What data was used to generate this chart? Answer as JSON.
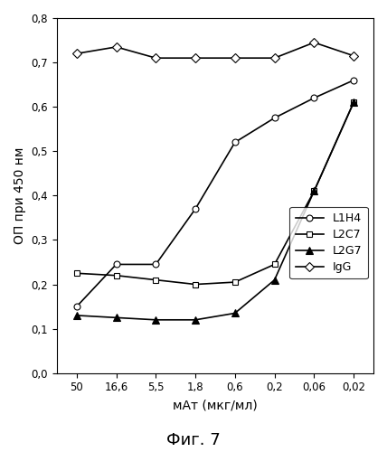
{
  "x_labels": [
    "50",
    "16,6",
    "5,5",
    "1,8",
    "0,6",
    "0,2",
    "0,06",
    "0,02"
  ],
  "series": {
    "L1H4": {
      "y": [
        0.15,
        0.245,
        0.245,
        0.37,
        0.52,
        0.575,
        0.62,
        0.66
      ],
      "marker": "o",
      "markerfacecolor": "white",
      "color": "black",
      "linewidth": 1.2
    },
    "L2C7": {
      "y": [
        0.225,
        0.22,
        0.21,
        0.2,
        0.205,
        0.245,
        0.41,
        0.61
      ],
      "marker": "s",
      "markerfacecolor": "white",
      "color": "black",
      "linewidth": 1.2
    },
    "L2G7": {
      "y": [
        0.13,
        0.125,
        0.12,
        0.12,
        0.135,
        0.21,
        0.41,
        0.61
      ],
      "marker": "^",
      "markerfacecolor": "black",
      "color": "black",
      "linewidth": 1.2
    },
    "IgG": {
      "y": [
        0.72,
        0.735,
        0.71,
        0.71,
        0.71,
        0.71,
        0.745,
        0.715
      ],
      "marker": "D",
      "markerfacecolor": "white",
      "color": "black",
      "linewidth": 1.2
    }
  },
  "ylabel": "ОП при 450 нм",
  "xlabel": "мАт (мкг/мл)",
  "ylim": [
    0.0,
    0.8
  ],
  "yticks": [
    0.0,
    0.1,
    0.2,
    0.3,
    0.4,
    0.5,
    0.6,
    0.7,
    0.8
  ],
  "ytick_labels": [
    "0,0",
    "0,1",
    "0,2",
    "0,3",
    "0,4",
    "0,5",
    "0,6",
    "0,7",
    "0,8"
  ],
  "figure_label": "Фиг. 7",
  "legend_order": [
    "L1H4",
    "L2C7",
    "L2G7",
    "IgG"
  ],
  "background_color": "#ffffff"
}
